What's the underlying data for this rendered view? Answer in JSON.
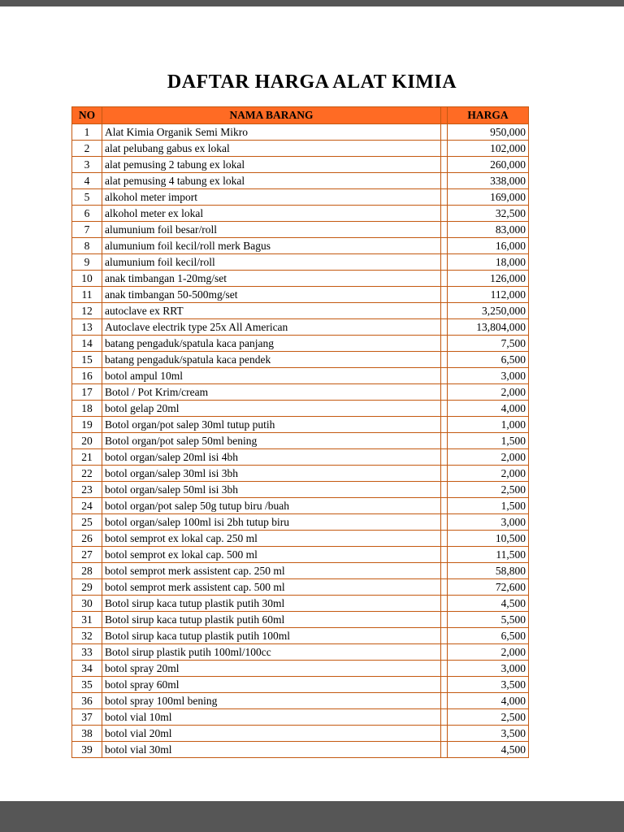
{
  "page": {
    "title": "DAFTAR HARGA ALAT KIMIA"
  },
  "colors": {
    "header_bg": "#FF6B24",
    "border": "#C45911",
    "page_margin_gray": "#565656"
  },
  "table": {
    "headers": [
      "NO",
      "NAMA BARANG",
      "HARGA"
    ],
    "rows": [
      [
        "1",
        "Alat Kimia Organik Semi Mikro",
        "950,000"
      ],
      [
        "2",
        "alat pelubang gabus ex lokal",
        "102,000"
      ],
      [
        "3",
        "alat pemusing 2 tabung ex lokal",
        "260,000"
      ],
      [
        "4",
        "alat pemusing 4 tabung ex lokal",
        "338,000"
      ],
      [
        "5",
        "alkohol meter import",
        "169,000"
      ],
      [
        "6",
        "alkohol meter ex lokal",
        "32,500"
      ],
      [
        "7",
        "alumunium foil besar/roll",
        "83,000"
      ],
      [
        "8",
        "alumunium foil kecil/roll merk Bagus",
        "16,000"
      ],
      [
        "9",
        "alumunium foil kecil/roll",
        "18,000"
      ],
      [
        "10",
        "anak timbangan 1-20mg/set",
        "126,000"
      ],
      [
        "11",
        "anak timbangan 50-500mg/set",
        "112,000"
      ],
      [
        "12",
        "autoclave ex RRT",
        "3,250,000"
      ],
      [
        "13",
        "Autoclave electrik type 25x All American",
        "13,804,000"
      ],
      [
        "14",
        "batang pengaduk/spatula kaca panjang",
        "7,500"
      ],
      [
        "15",
        "batang pengaduk/spatula kaca pendek",
        "6,500"
      ],
      [
        "16",
        "botol ampul 10ml",
        "3,000"
      ],
      [
        "17",
        "Botol / Pot Krim/cream",
        "2,000"
      ],
      [
        "18",
        "botol gelap 20ml",
        "4,000"
      ],
      [
        "19",
        "Botol organ/pot salep 30ml tutup putih",
        "1,000"
      ],
      [
        "20",
        "Botol organ/pot salep 50ml bening",
        "1,500"
      ],
      [
        "21",
        "botol organ/salep 20ml isi 4bh",
        "2,000"
      ],
      [
        "22",
        "botol organ/salep 30ml isi 3bh",
        "2,000"
      ],
      [
        "23",
        "botol organ/salep 50ml isi 3bh",
        "2,500"
      ],
      [
        "24",
        "botol organ/pot salep 50g tutup biru /buah",
        "1,500"
      ],
      [
        "25",
        "botol organ/salep 100ml isi 2bh tutup biru",
        "3,000"
      ],
      [
        "26",
        "botol semprot ex lokal cap. 250 ml",
        "10,500"
      ],
      [
        "27",
        "botol semprot ex lokal cap. 500 ml",
        "11,500"
      ],
      [
        "28",
        "botol semprot merk assistent cap. 250 ml",
        "58,800"
      ],
      [
        "29",
        "botol semprot merk assistent cap. 500 ml",
        "72,600"
      ],
      [
        "30",
        "Botol sirup kaca tutup plastik putih 30ml",
        "4,500"
      ],
      [
        "31",
        "Botol sirup kaca tutup plastik putih 60ml",
        "5,500"
      ],
      [
        "32",
        "Botol sirup kaca tutup plastik putih 100ml",
        "6,500"
      ],
      [
        "33",
        "Botol sirup plastik putih 100ml/100cc",
        "2,000"
      ],
      [
        "34",
        "botol spray 20ml",
        "3,000"
      ],
      [
        "35",
        "botol spray 60ml",
        "3,500"
      ],
      [
        "36",
        "botol spray 100ml bening",
        "4,000"
      ],
      [
        "37",
        "botol vial 10ml",
        "2,500"
      ],
      [
        "38",
        "botol vial 20ml",
        "3,500"
      ],
      [
        "39",
        "botol vial 30ml",
        "4,500"
      ]
    ]
  }
}
